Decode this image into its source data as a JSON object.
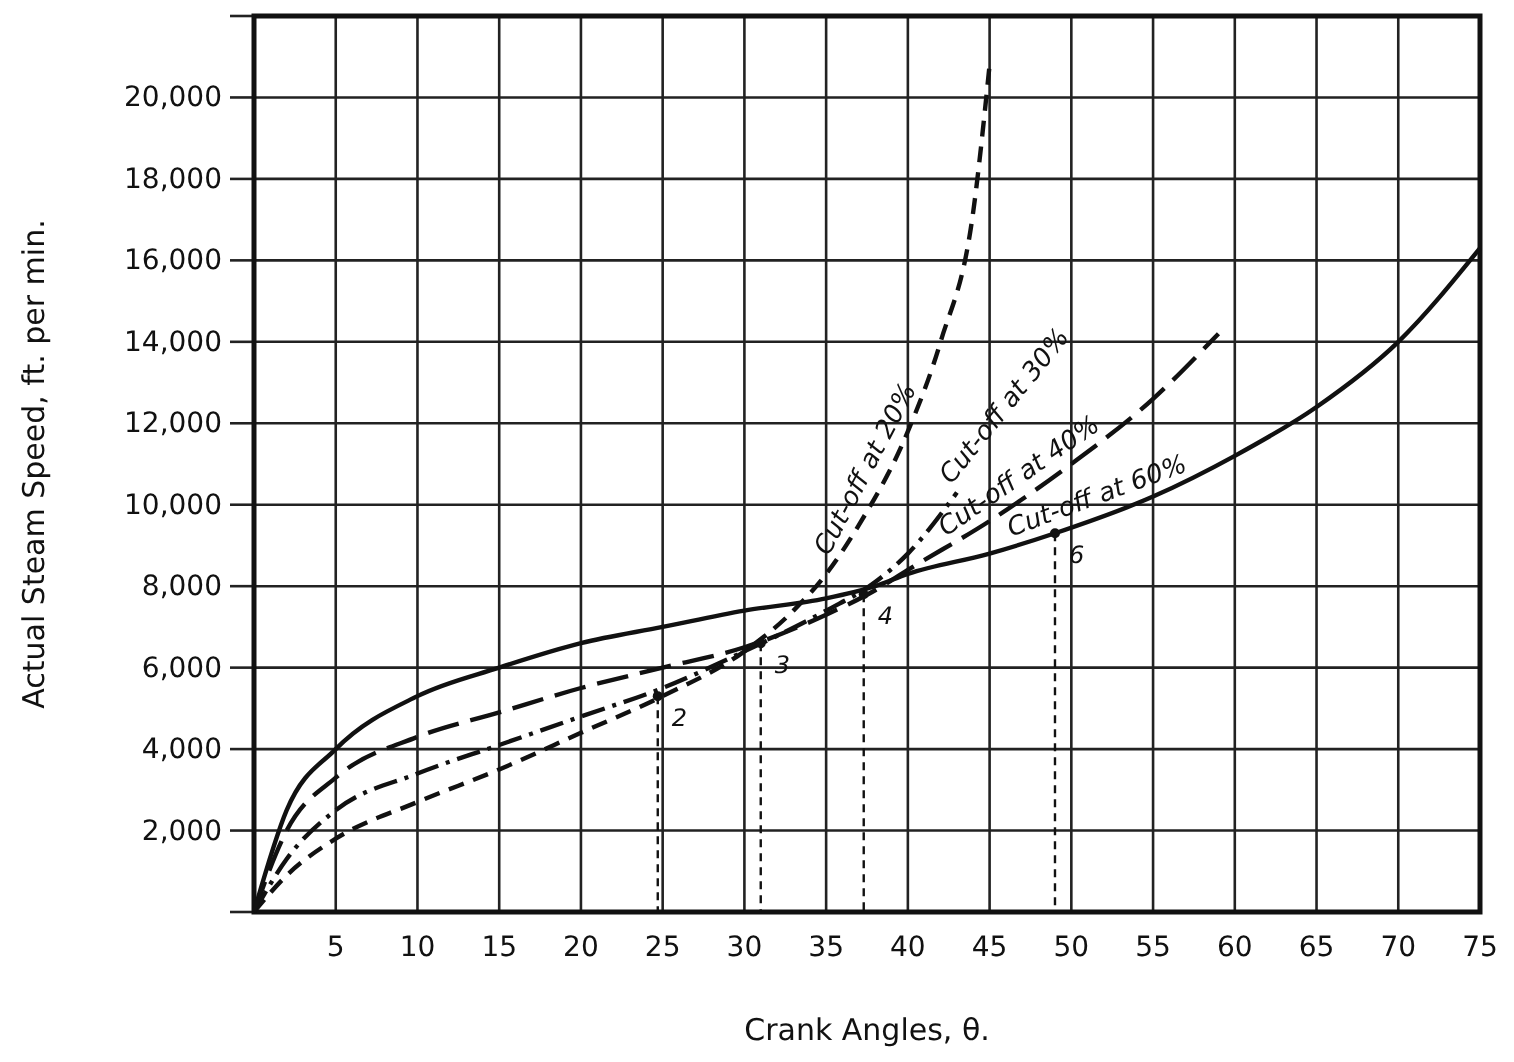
{
  "chart_data": {
    "type": "line",
    "xlabel": "Crank Angles, θ.",
    "ylabel": "Actual Steam Speed, ft. per min.",
    "xlim": [
      0,
      75
    ],
    "xticks": [
      5,
      10,
      15,
      20,
      25,
      30,
      35,
      40,
      45,
      50,
      55,
      60,
      65,
      70,
      75
    ],
    "ylim": [
      0,
      22000
    ],
    "yticks": [
      {
        "value": 0,
        "label": null
      },
      {
        "value": 2000,
        "label": "2,000"
      },
      {
        "value": 4000,
        "label": "4,000"
      },
      {
        "value": 6000,
        "label": "6,000"
      },
      {
        "value": 8000,
        "label": "8,000"
      },
      {
        "value": 10000,
        "label": "10,000"
      },
      {
        "value": 12000,
        "label": "12,000"
      },
      {
        "value": 14000,
        "label": "14,000"
      },
      {
        "value": 16000,
        "label": "16,000"
      },
      {
        "value": 18000,
        "label": "18,000"
      },
      {
        "value": 20000,
        "label": "20,000"
      },
      {
        "value": 22000,
        "label": null
      }
    ],
    "grid": true,
    "marker": "none",
    "series": [
      {
        "name": "Cut-off at 20%",
        "color": "#111111",
        "line_style": "dashed",
        "x": [
          0,
          2,
          5,
          10,
          15,
          20,
          25,
          30,
          33,
          35,
          37,
          40,
          42,
          44,
          45
        ],
        "values": [
          0,
          900,
          1800,
          2700,
          3500,
          4400,
          5300,
          6400,
          7400,
          8300,
          9500,
          11800,
          14000,
          17200,
          20800
        ]
      },
      {
        "name": "Cut-off at 30%",
        "color": "#111111",
        "line_style": "dashdot",
        "x": [
          0,
          2,
          5,
          10,
          15,
          20,
          25,
          30,
          35,
          38,
          40,
          43
        ],
        "values": [
          0,
          1300,
          2500,
          3400,
          4100,
          4800,
          5500,
          6400,
          7400,
          8100,
          8800,
          10300
        ]
      },
      {
        "name": "Cut-off at 40%",
        "color": "#111111",
        "line_style": "longdash",
        "x": [
          0,
          2,
          5,
          10,
          15,
          20,
          25,
          30,
          35,
          38,
          40,
          45,
          50,
          55,
          59
        ],
        "values": [
          0,
          2000,
          3300,
          4300,
          4900,
          5500,
          6000,
          6500,
          7300,
          7900,
          8400,
          9600,
          11000,
          12600,
          14200
        ]
      },
      {
        "name": "Cut-off at 60%",
        "color": "#111111",
        "line_style": "solid",
        "x": [
          0,
          2,
          5,
          10,
          15,
          20,
          25,
          30,
          35,
          38,
          40,
          45,
          49,
          55,
          60,
          65,
          70,
          75
        ],
        "values": [
          0,
          2500,
          4000,
          5300,
          6000,
          6600,
          7000,
          7400,
          7700,
          8000,
          8300,
          8800,
          9300,
          10200,
          11200,
          12400,
          14000,
          16300
        ]
      }
    ],
    "annotations": [
      {
        "text": "2",
        "x": 24.7,
        "y": 5300
      },
      {
        "text": "3",
        "x": 31,
        "y": 6600
      },
      {
        "text": "4",
        "x": 37.3,
        "y": 7800
      },
      {
        "text": "6",
        "x": 49,
        "y": 9300
      }
    ]
  }
}
